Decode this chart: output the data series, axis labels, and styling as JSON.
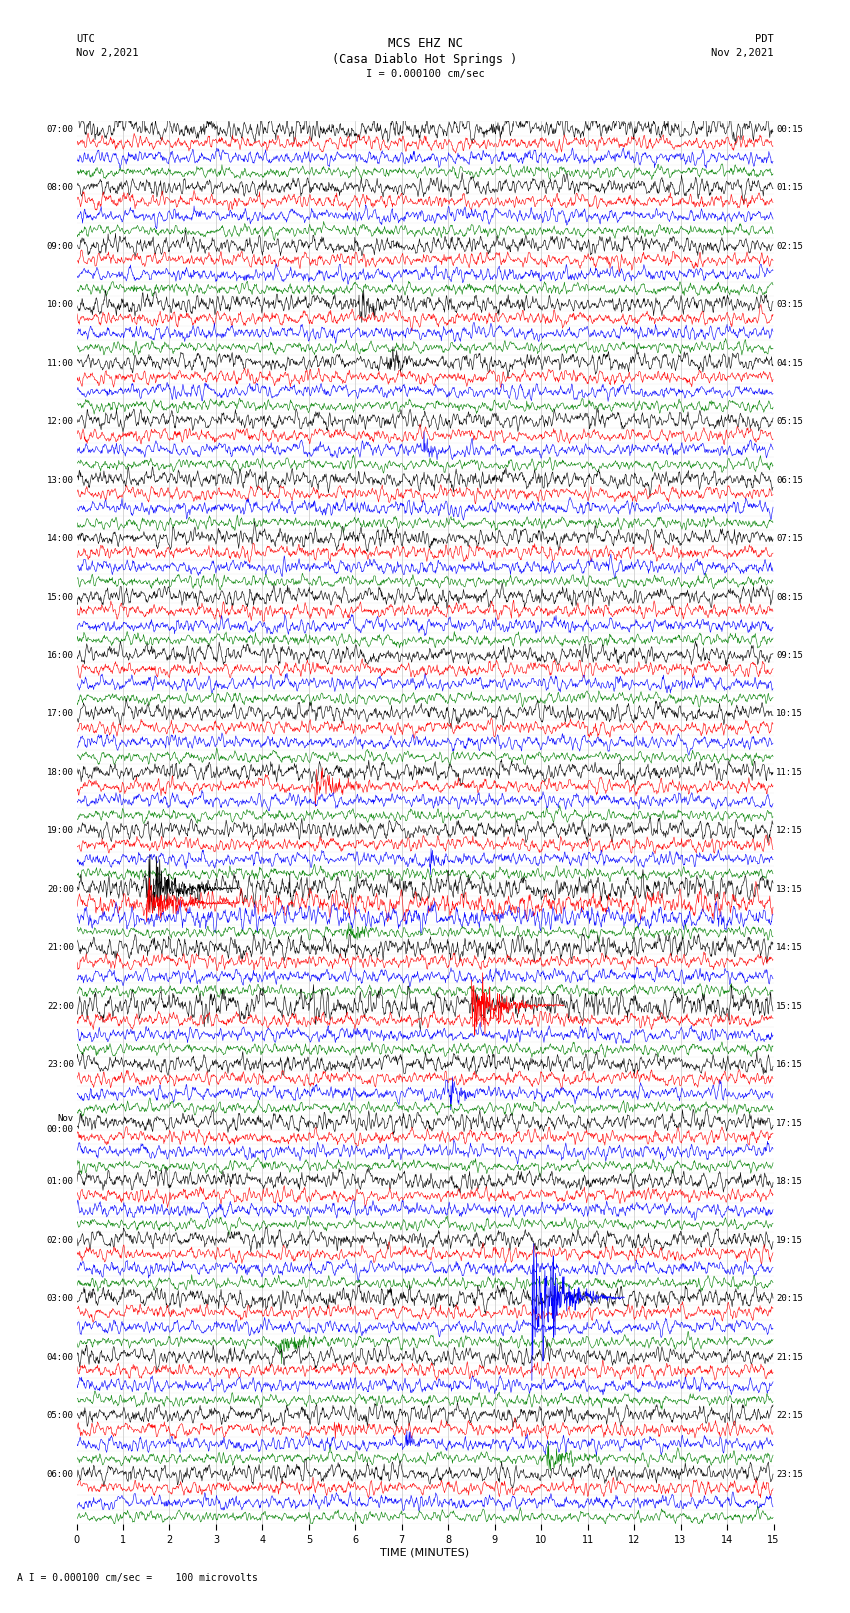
{
  "title_line1": "MCS EHZ NC",
  "title_line2": "(Casa Diablo Hot Springs )",
  "scale_label": "I = 0.000100 cm/sec",
  "footer_label": "A I = 0.000100 cm/sec =    100 microvolts",
  "xlabel": "TIME (MINUTES)",
  "bg_color": "#ffffff",
  "trace_colors": [
    "black",
    "red",
    "blue",
    "green"
  ],
  "num_rows": 96,
  "minutes_per_row": 15,
  "fig_width": 8.5,
  "fig_height": 16.13,
  "utc_tick_rows": [
    0,
    4,
    8,
    12,
    16,
    20,
    24,
    28,
    32,
    36,
    40,
    44,
    48,
    52,
    56,
    60,
    64,
    68,
    72,
    76,
    80,
    84,
    88,
    92
  ],
  "utc_tick_labels": [
    "07:00",
    "08:00",
    "09:00",
    "10:00",
    "11:00",
    "12:00",
    "13:00",
    "14:00",
    "15:00",
    "16:00",
    "17:00",
    "18:00",
    "19:00",
    "20:00",
    "21:00",
    "22:00",
    "23:00",
    "Nov\n00:00",
    "01:00",
    "02:00",
    "03:00",
    "04:00",
    "05:00",
    "06:00"
  ],
  "pdt_tick_rows": [
    0,
    4,
    8,
    12,
    16,
    20,
    24,
    28,
    32,
    36,
    40,
    44,
    48,
    52,
    56,
    60,
    64,
    68,
    72,
    76,
    80,
    84,
    88,
    92
  ],
  "pdt_tick_labels": [
    "00:15",
    "01:15",
    "02:15",
    "03:15",
    "04:15",
    "05:15",
    "06:15",
    "07:15",
    "08:15",
    "09:15",
    "10:15",
    "11:15",
    "12:15",
    "13:15",
    "14:15",
    "15:15",
    "16:15",
    "17:15",
    "18:15",
    "19:15",
    "20:15",
    "21:15",
    "22:15",
    "23:15"
  ],
  "vert_grid_color": "#888888",
  "vert_grid_lw": 0.4
}
